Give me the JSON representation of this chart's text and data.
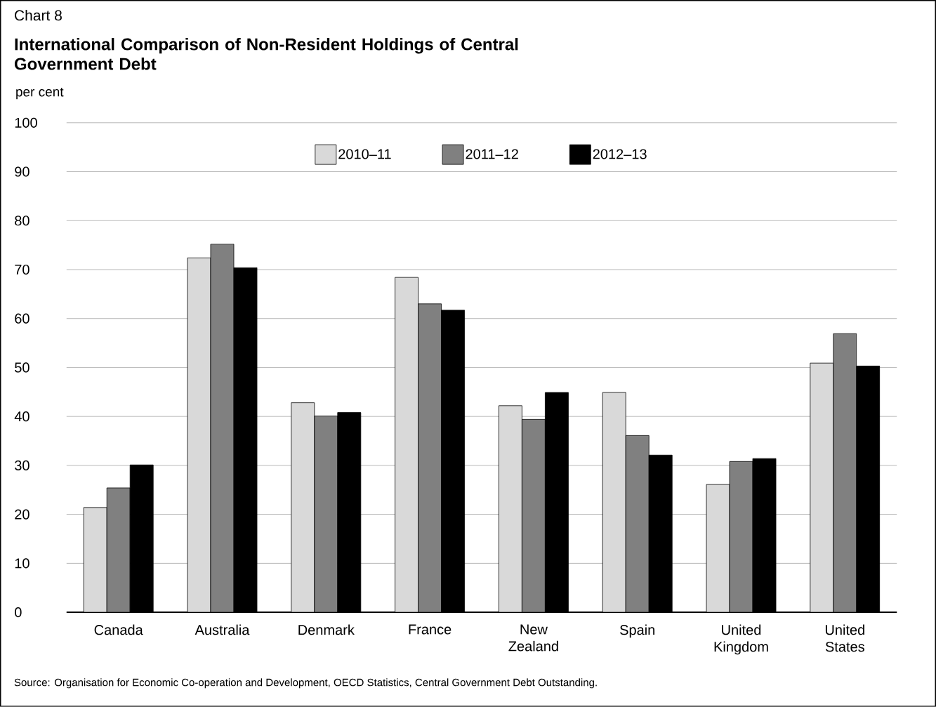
{
  "chart_data": {
    "type": "bar",
    "title": "International Comparison of Non-Resident Holdings of Central Government Debt",
    "ylabel": "per cent",
    "annotations": [
      "Chart 8",
      "Source: Organisation for Economic Co-operation and Development, OECD Statistics, Central Government Debt Outstanding."
    ],
    "categories": [
      "Canada",
      "Australia",
      "Denmark",
      "France",
      "New Zealand",
      "Spain",
      "United Kingdom",
      "United States"
    ],
    "series": [
      {
        "name": "2010–11",
        "color": "#d9d9d9",
        "values": [
          21.4,
          72.4,
          42.8,
          68.4,
          42.2,
          44.9,
          26.1,
          50.9
        ]
      },
      {
        "name": "2011–12",
        "color": "#808080",
        "values": [
          25.4,
          75.2,
          40.1,
          63.0,
          39.4,
          36.1,
          30.8,
          56.9
        ]
      },
      {
        "name": "2012–13",
        "color": "#000000",
        "values": [
          30.1,
          70.4,
          40.8,
          61.7,
          44.9,
          32.1,
          31.4,
          50.3
        ]
      }
    ],
    "ylim": [
      0,
      100
    ],
    "yticks": [
      0,
      10,
      20,
      30,
      40,
      50,
      60,
      70,
      80,
      90,
      100
    ],
    "grid": "y",
    "legend": "top"
  }
}
